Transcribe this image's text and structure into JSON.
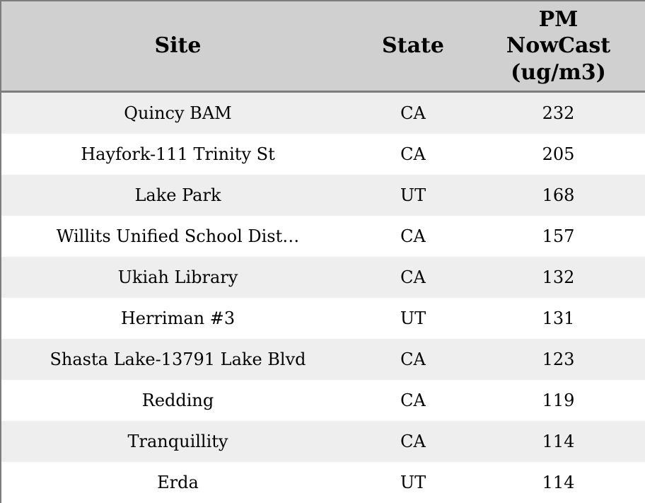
{
  "colors": {
    "header_bg": "#d0d0d0",
    "stripe_bg": "#eeeeee",
    "border": "#7d7d7d",
    "text": "#000000"
  },
  "table": {
    "columns": [
      {
        "key": "site",
        "label": "Site"
      },
      {
        "key": "state",
        "label": "State"
      },
      {
        "key": "pm",
        "label": "PM NowCast (ug/m3)"
      }
    ],
    "rows": [
      {
        "site": "Quincy BAM",
        "state": "CA",
        "pm": "232"
      },
      {
        "site": "Hayfork-111 Trinity St",
        "state": "CA",
        "pm": "205"
      },
      {
        "site": "Lake Park",
        "state": "UT",
        "pm": "168"
      },
      {
        "site": "Willits Unified School Dist…",
        "state": "CA",
        "pm": "157"
      },
      {
        "site": "Ukiah Library",
        "state": "CA",
        "pm": "132"
      },
      {
        "site": "Herriman #3",
        "state": "UT",
        "pm": "131"
      },
      {
        "site": "Shasta Lake-13791 Lake Blvd",
        "state": "CA",
        "pm": "123"
      },
      {
        "site": "Redding",
        "state": "CA",
        "pm": "119"
      },
      {
        "site": "Tranquillity",
        "state": "CA",
        "pm": "114"
      },
      {
        "site": "Erda",
        "state": "UT",
        "pm": "114"
      }
    ]
  }
}
